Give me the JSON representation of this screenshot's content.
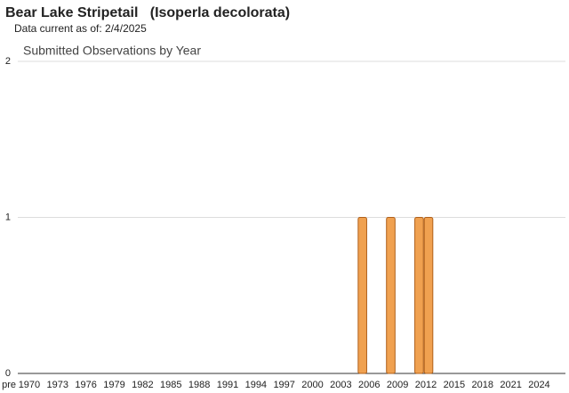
{
  "header": {
    "title": "Bear Lake Stripetail   (Isoperla decolorata)",
    "subtitle": "Data current as of: 2/4/2025"
  },
  "chart_data": {
    "type": "bar",
    "title": "Submitted Observations by Year",
    "categories": [
      "pre",
      "1970",
      null,
      null,
      "1973",
      null,
      null,
      "1976",
      null,
      null,
      "1979",
      null,
      null,
      "1982",
      null,
      null,
      "1985",
      null,
      null,
      "1988",
      null,
      null,
      "1991",
      null,
      null,
      "1994",
      null,
      null,
      "1997",
      null,
      null,
      "2000",
      null,
      null,
      "2003",
      null,
      null,
      "2006",
      null,
      null,
      "2009",
      null,
      null,
      "2012",
      null,
      null,
      "2015",
      null,
      null,
      "2018",
      null,
      null,
      "2021",
      null,
      null,
      "2024",
      null,
      null
    ],
    "values": [
      0,
      0,
      0,
      0,
      0,
      0,
      0,
      0,
      0,
      0,
      0,
      0,
      0,
      0,
      0,
      0,
      0,
      0,
      0,
      0,
      0,
      0,
      0,
      0,
      0,
      0,
      0,
      0,
      0,
      0,
      0,
      0,
      0,
      0,
      0,
      0,
      1,
      0,
      0,
      1,
      0,
      0,
      1,
      1,
      0,
      0,
      0,
      0,
      0,
      0,
      0,
      0,
      0,
      0,
      0,
      0,
      0,
      0
    ],
    "color": "#f0a150",
    "ylim": [
      0,
      2
    ],
    "yticks": [
      0,
      1,
      2
    ],
    "grid": true
  }
}
